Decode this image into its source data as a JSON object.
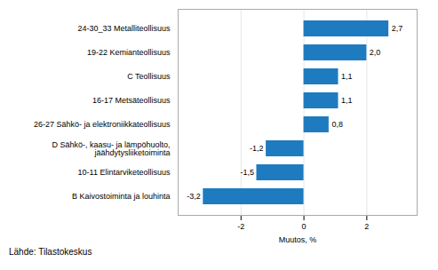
{
  "chart_data": {
    "type": "bar",
    "orientation": "horizontal",
    "categories": [
      "B Kaivostoiminta ja louhinta",
      "10-11 Elintarviketeollisuus",
      "D Sähkö-, kaasu- ja lämpöhuolto,\njäähdytysliiketoiminta",
      "26-27 Sähkö- ja elektroniikkateollisuus",
      "16-17 Metsäteollisuus",
      "C Teollisuus",
      "19-22 Kemianteollisuus",
      "24-30_33 Metalliteollisuus"
    ],
    "values": [
      -3.2,
      -1.5,
      -1.2,
      0.8,
      1.1,
      1.1,
      2.0,
      2.7
    ],
    "value_labels": [
      "-3,2",
      "-1,5",
      "-1,2",
      "0,8",
      "1,1",
      "1,1",
      "2,0",
      "2,7"
    ],
    "data_labels": true,
    "color": "#1f7bbf",
    "xlabel": "Muutos, %",
    "xlim": [
      -4.0,
      3.6
    ],
    "xticks": [
      -2,
      0,
      2
    ],
    "grid": true,
    "caption": "Lähde: Tilastokeskus"
  }
}
